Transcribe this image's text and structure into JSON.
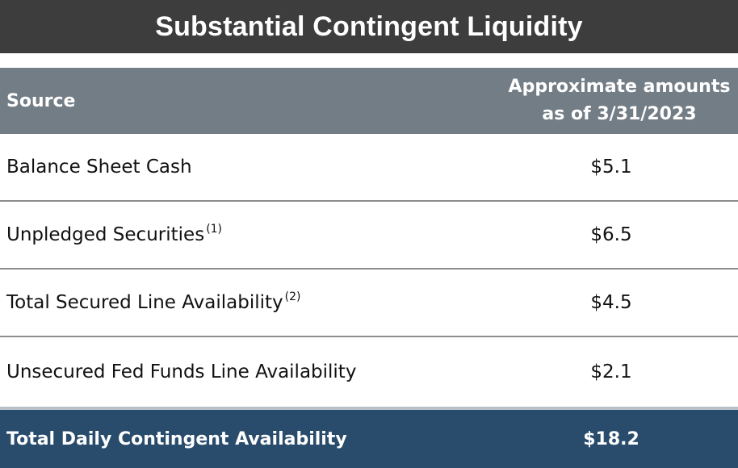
{
  "title": "Substantial Contingent Liquidity",
  "table": {
    "header": {
      "source": "Source",
      "amount_line1": "Approximate amounts",
      "amount_line2": "as of 3/31/2023"
    },
    "rows": [
      {
        "source": "Balance Sheet Cash",
        "note": "",
        "amount": "$5.1"
      },
      {
        "source": "Unpledged Securities",
        "note": "(1)",
        "amount": "$6.5"
      },
      {
        "source": "Total Secured Line Availability",
        "note": "(2)",
        "amount": "$4.5"
      },
      {
        "source": "Unsecured Fed Funds Line Availability",
        "note": "",
        "amount": "$2.1"
      }
    ],
    "total": {
      "source": "Total Daily Contingent Availability",
      "amount": "$18.2"
    }
  },
  "colors": {
    "title_bar": "#3d3d3d",
    "header_bar": "#737d86",
    "total_bar": "#294c6c",
    "row_divider": "#8c8c8c"
  }
}
